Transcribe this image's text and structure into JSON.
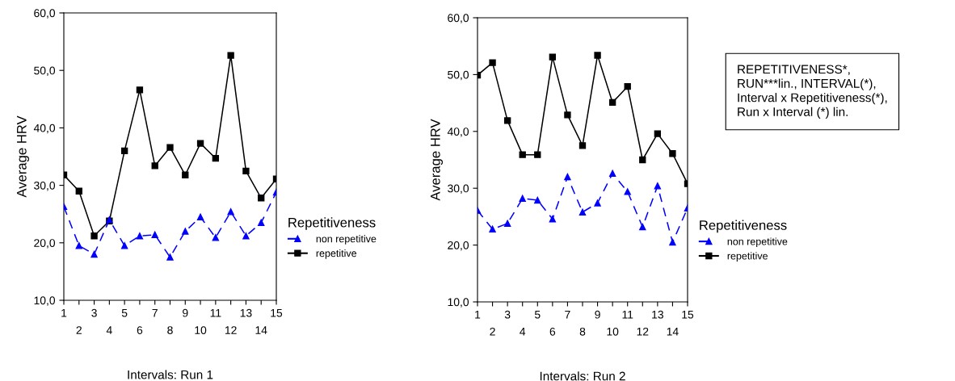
{
  "chart_data": [
    {
      "type": "line",
      "xlabel": "Intervals: Run 1",
      "ylabel": "Average HRV",
      "legend_title": "Repetitiveness",
      "legend": "bottom right",
      "grid": false,
      "categories": [
        "1",
        "2",
        "3",
        "4",
        "5",
        "6",
        "7",
        "8",
        "9",
        "10",
        "11",
        "12",
        "13",
        "14",
        "15"
      ],
      "ylim": [
        10,
        60
      ],
      "yticks": [
        {
          "value": 10,
          "label": "10,0"
        },
        {
          "value": 20,
          "label": "20,0"
        },
        {
          "value": 30,
          "label": "30,0"
        },
        {
          "value": 40,
          "label": "40,0"
        },
        {
          "value": 50,
          "label": "50,0"
        },
        {
          "value": 60,
          "label": "60,0"
        }
      ],
      "series": [
        {
          "name": "non repetitive",
          "color": "#0000ff",
          "marker": "triangle",
          "line_style": "dashed",
          "values": [
            26.3,
            19.5,
            18.0,
            24.0,
            19.5,
            21.2,
            21.4,
            17.5,
            22.0,
            24.5,
            20.9,
            25.4,
            21.2,
            23.5,
            28.8
          ]
        },
        {
          "name": "repetitive",
          "color": "#000000",
          "marker": "square",
          "line_style": "solid",
          "values": [
            31.8,
            29.0,
            21.2,
            23.8,
            36.0,
            46.6,
            33.4,
            36.6,
            31.8,
            37.3,
            34.7,
            52.6,
            32.5,
            27.8,
            31.1
          ]
        }
      ]
    },
    {
      "type": "line",
      "xlabel": "Intervals: Run 2",
      "ylabel": "Average HRV",
      "legend_title": "Repetitiveness",
      "legend": "right",
      "grid": false,
      "categories": [
        "1",
        "2",
        "3",
        "4",
        "5",
        "6",
        "7",
        "8",
        "9",
        "10",
        "11",
        "12",
        "13",
        "14",
        "15"
      ],
      "ylim": [
        10,
        60
      ],
      "yticks": [
        {
          "value": 10,
          "label": "10,0"
        },
        {
          "value": 20,
          "label": "20,0"
        },
        {
          "value": 30,
          "label": "30,0"
        },
        {
          "value": 40,
          "label": "40,0"
        },
        {
          "value": 50,
          "label": "50,0"
        },
        {
          "value": 60,
          "label": "60,0"
        }
      ],
      "annotations": [
        "REPETITIVENESS*,\nRUN***lin., INTERVAL(*),\nInterval x Repetitiveness(*),\nRun x Interval (*) lin."
      ],
      "series": [
        {
          "name": "non repetitive",
          "color": "#0000ff",
          "marker": "triangle",
          "line_style": "dashed",
          "values": [
            26.1,
            22.8,
            23.8,
            28.2,
            27.9,
            24.6,
            32.0,
            25.8,
            27.4,
            32.6,
            29.4,
            23.2,
            30.4,
            20.5,
            26.5
          ]
        },
        {
          "name": "repetitive",
          "color": "#000000",
          "marker": "square",
          "line_style": "solid",
          "values": [
            49.9,
            52.1,
            41.9,
            35.9,
            35.9,
            53.1,
            42.9,
            37.5,
            53.4,
            45.1,
            47.9,
            35.0,
            39.6,
            36.1,
            30.8
          ]
        }
      ]
    }
  ]
}
